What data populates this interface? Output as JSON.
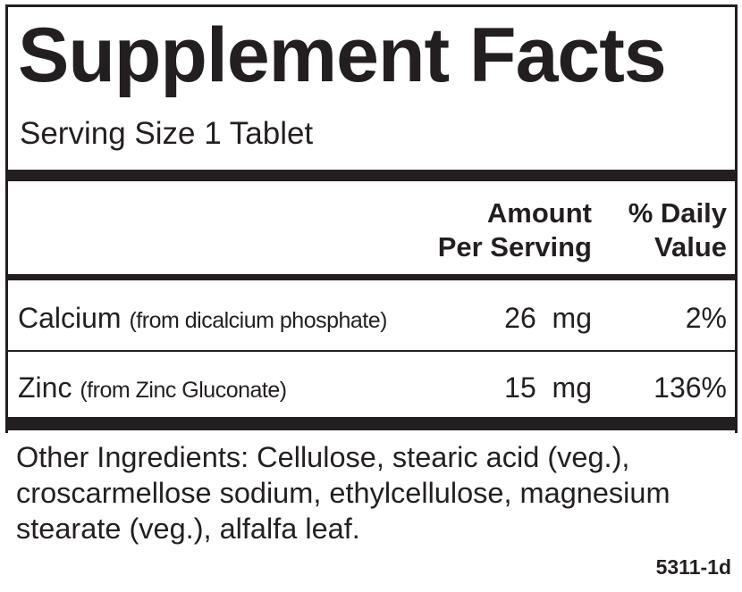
{
  "title": "Supplement Facts",
  "serving_size": "Serving Size 1 Tablet",
  "header": {
    "amount_line1": "Amount",
    "amount_line2": "Per Serving",
    "dv_line1": "% Daily",
    "dv_line2": "Value"
  },
  "nutrients": [
    {
      "name": "Calcium",
      "source": "(from dicalcium phosphate)",
      "amount": "26",
      "unit": "mg",
      "dv": "2%"
    },
    {
      "name": "Zinc",
      "source": "(from Zinc Gluconate)",
      "amount": "15",
      "unit": "mg",
      "dv": "136%"
    }
  ],
  "other_ingredients": "Other Ingredients: Cellulose, stearic acid (veg.), croscarmellose sodium, ethylcellulose, magnesium stearate (veg.), alfalfa leaf.",
  "code": "5311-1d"
}
